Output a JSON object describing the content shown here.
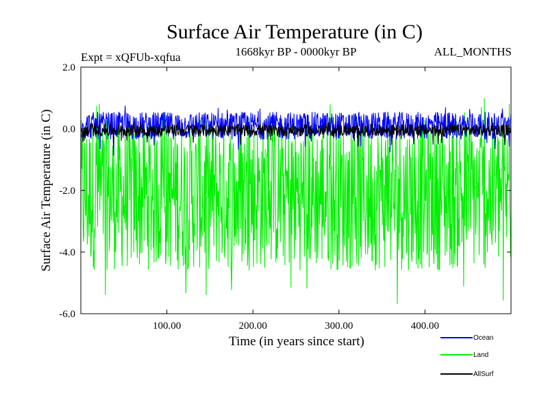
{
  "chart_data": {
    "type": "line",
    "title": "Surface Air Temperature (in C)",
    "expt_label": "Expt = xQFUb-xqfua",
    "period_label": "1668kyr BP - 0000kyr BP",
    "months_label": "ALL_MONTHS",
    "xlabel": "Time (in years since start)",
    "ylabel": "Surface Air Temperature (in C)",
    "xlim": [
      0,
      500
    ],
    "ylim": [
      -6.0,
      2.0
    ],
    "x_ticks": [
      100,
      200,
      300,
      400
    ],
    "x_tick_labels": [
      "100.00",
      "200.00",
      "300.00",
      "400.00"
    ],
    "y_ticks": [
      2.0,
      0.0,
      -2.0,
      -4.0,
      -6.0
    ],
    "y_tick_labels": [
      "2.0",
      "0.0",
      "-2.0",
      "-4.0",
      "-6.0"
    ],
    "legend_position": "bottom-right",
    "series": [
      {
        "name": "Land",
        "color": "#00ee00",
        "description": "dense high-frequency annual series",
        "typical_range": [
          -4.6,
          0.3
        ],
        "extremes": [
          -5.7,
          1.1
        ]
      },
      {
        "name": "Ocean",
        "color": "#0000ff",
        "description": "dense high-frequency annual series",
        "typical_range": [
          -0.35,
          0.55
        ],
        "extremes": [
          -0.9,
          0.8
        ]
      },
      {
        "name": "AllSurf",
        "color": "#000000",
        "description": "dense high-frequency annual series",
        "typical_range": [
          -0.25,
          0.15
        ],
        "extremes": [
          -0.6,
          0.3
        ]
      }
    ]
  }
}
